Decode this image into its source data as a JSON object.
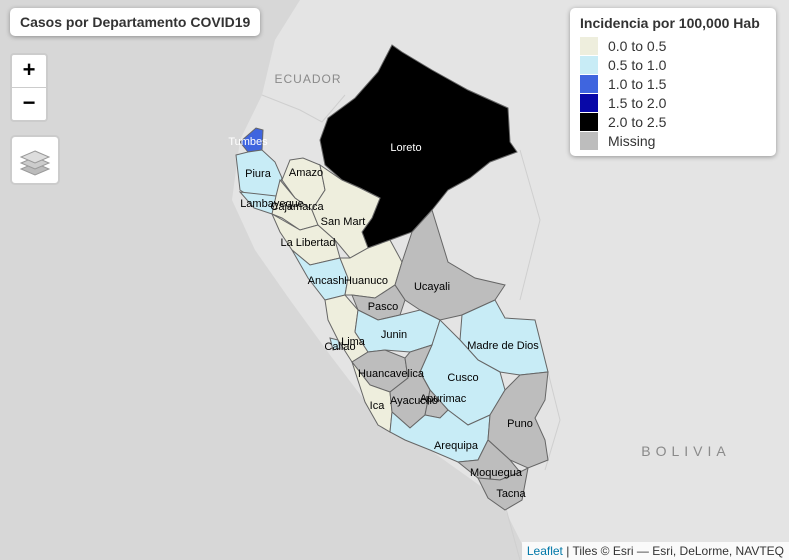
{
  "title": "Casos por Departamento COVID19",
  "zoom": {
    "in_label": "+",
    "out_label": "−"
  },
  "basemap_labels": {
    "ecuador": "ECUADOR",
    "bolivia": "BOLIVIA"
  },
  "legend": {
    "title": "Incidencia por 100,000 Hab",
    "items": [
      {
        "label": "0.0 to 0.5",
        "color": "#eeeedd"
      },
      {
        "label": "0.5 to 1.0",
        "color": "#c8ecf6"
      },
      {
        "label": "1.0 to 1.5",
        "color": "#3f65df"
      },
      {
        "label": "1.5 to 2.0",
        "color": "#0808a8"
      },
      {
        "label": "2.0 to 2.5",
        "color": "#000000"
      },
      {
        "label": "Missing",
        "color": "#bdbdbd"
      }
    ]
  },
  "departments": {
    "tumbes": "Tumbes",
    "piura": "Piura",
    "lambayeque": "Lambayeque",
    "amazonas": "Amazo",
    "cajamarca": "Cajamarca",
    "loreto": "Loreto",
    "san_martin": "San Mart",
    "la_libertad": "La Libertad",
    "ancash": "Ancash",
    "huanuco": "Huanuco",
    "ucayali": "Ucayali",
    "pasco": "Pasco",
    "junin": "Junin",
    "lima": "Lima",
    "callao": "Callao",
    "madre_de_dios": "Madre de Dios",
    "huancavelica": "Huancavelica",
    "cusco": "Cusco",
    "ica": "Ica",
    "ayacucho": "Ayacucho",
    "apurimac": "Apurimac",
    "puno": "Puno",
    "arequipa": "Arequipa",
    "moquegua": "Moquegua",
    "tacna": "Tacna"
  },
  "attribution": {
    "link": "Leaflet",
    "text": " | Tiles © Esri — Esri, DeLorme, NAVTEQ"
  }
}
